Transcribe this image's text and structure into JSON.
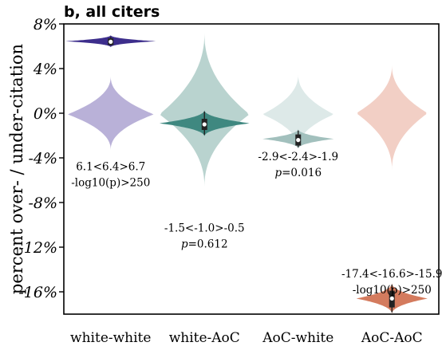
{
  "chart_data": {
    "type": "violin",
    "panel_title": "b, all citers",
    "ylabel": "percent over- / under-citation",
    "xlabel": "",
    "ylim": [
      -18,
      8
    ],
    "yticks": [
      {
        "value": 8,
        "label": "8%"
      },
      {
        "value": 4,
        "label": "4%"
      },
      {
        "value": 0,
        "label": "0%"
      },
      {
        "value": -4,
        "label": "-4%"
      },
      {
        "value": -8,
        "label": "-8%"
      },
      {
        "value": -12,
        "label": "-12%"
      },
      {
        "value": -16,
        "label": "-16%"
      }
    ],
    "categories": [
      "white-white",
      "white-AoC",
      "AoC-white",
      "AoC-AoC"
    ],
    "groups": [
      {
        "category": "white-white",
        "null": {
          "min": -3.3,
          "max": 3.3,
          "peak": -0.1,
          "halfwidth": 0.46,
          "color": "#b9b1d8"
        },
        "observed": {
          "center": 6.4,
          "ci_low": 6.1,
          "ci_high": 6.7,
          "min": 5.9,
          "max": 7.0,
          "halfwidth": 0.48,
          "color": "#3d2e8c"
        },
        "stat_label": "6.1<6.4>6.7",
        "p_label": "-log10(p)>250"
      },
      {
        "category": "white-AoC",
        "null": {
          "min": -6.6,
          "max": 7.2,
          "peak": -0.1,
          "halfwidth": 0.48,
          "color": "#b9d3cf"
        },
        "observed": {
          "center": -1.0,
          "ci_low": -1.5,
          "ci_high": -0.5,
          "min": -2.1,
          "max": 0.3,
          "halfwidth": 0.48,
          "color": "#3f8880"
        },
        "stat_label": "-1.5<-1.0>-0.5",
        "p_label": "p=0.612"
      },
      {
        "category": "AoC-white",
        "null": {
          "min": -3.2,
          "max": 3.5,
          "peak": -0.1,
          "halfwidth": 0.38,
          "color": "#dde9e8"
        },
        "observed": {
          "center": -2.4,
          "ci_low": -2.9,
          "ci_high": -1.9,
          "min": -3.2,
          "max": -1.4,
          "halfwidth": 0.38,
          "color": "#a2c0bd"
        },
        "stat_label": "-2.9<-2.4>-1.9",
        "p_label": "p=0.016"
      },
      {
        "category": "AoC-AoC",
        "null": {
          "min": -5.1,
          "max": 4.3,
          "peak": 0.0,
          "halfwidth": 0.38,
          "color": "#f2cfc5"
        },
        "observed": {
          "center": -16.6,
          "ci_low": -17.4,
          "ci_high": -15.9,
          "min": -18.0,
          "max": -15.2,
          "halfwidth": 0.38,
          "color": "#d47b5e"
        },
        "stat_label": "-17.4<-16.6>-15.9",
        "p_label": "-log10(p)>250"
      }
    ]
  }
}
